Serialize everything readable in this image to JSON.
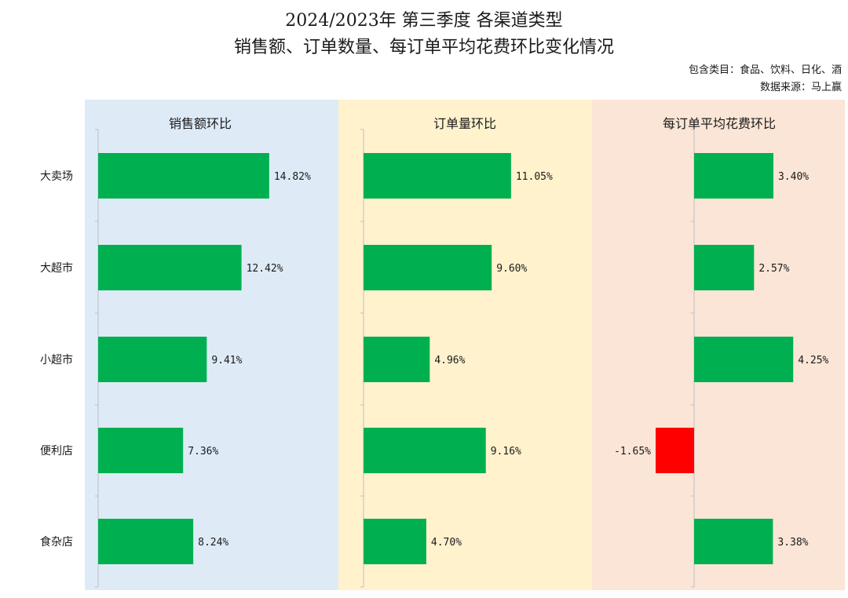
{
  "header": {
    "title_line1": "2024/2023年 第三季度 各渠道类型",
    "title_line2": "销售额、订单数量、每订单平均花费环比变化情况",
    "note_categories": "包含类目：食品、饮料、日化、酒",
    "note_source": "数据来源：马上赢"
  },
  "chart_data": {
    "type": "bar",
    "orientation": "horizontal",
    "categories": [
      "大卖场",
      "大超市",
      "小超市",
      "便利店",
      "食杂店"
    ],
    "panels": [
      {
        "title": "销售额环比",
        "values": [
          14.82,
          12.42,
          9.41,
          7.36,
          8.24
        ],
        "labels": [
          "14.82%",
          "12.42%",
          "9.41%",
          "7.36%",
          "8.24%"
        ],
        "background": "#deebf7"
      },
      {
        "title": "订单量环比",
        "values": [
          11.05,
          9.6,
          4.96,
          9.16,
          4.7
        ],
        "labels": [
          "11.05%",
          "9.60%",
          "4.96%",
          "9.16%",
          "4.70%"
        ],
        "background": "#fff2cc"
      },
      {
        "title": "每订单平均花费环比",
        "values": [
          3.4,
          2.57,
          4.25,
          -1.65,
          3.38
        ],
        "labels": [
          "3.40%",
          "2.57%",
          "4.25%",
          "-1.65%",
          "3.38%"
        ],
        "background": "#fbe5d6"
      }
    ],
    "colors": {
      "positive": "#00b050",
      "negative": "#ff0000"
    }
  }
}
